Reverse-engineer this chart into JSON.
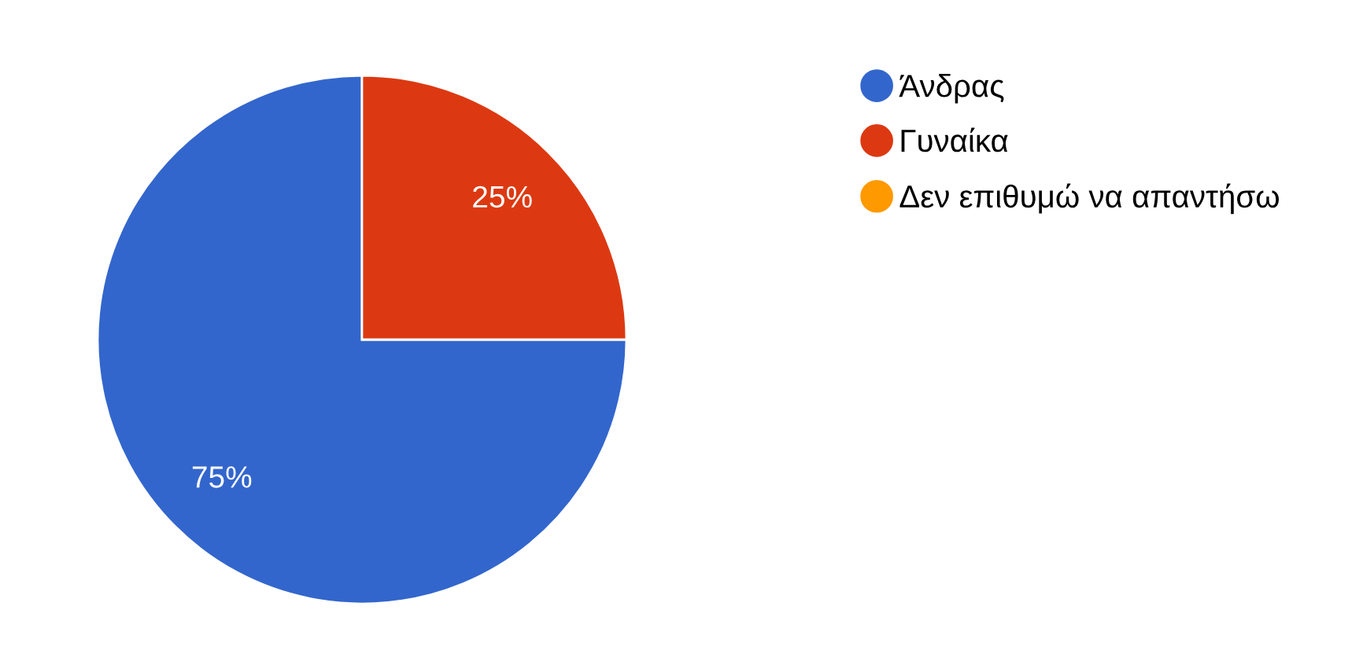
{
  "chart_data": {
    "type": "pie",
    "categories": [
      "Άνδρας",
      "Γυναίκα",
      "Δεν επιθυμώ να απαντήσω"
    ],
    "values": [
      75,
      25,
      0
    ],
    "colors": [
      "#3366cc",
      "#dc3912",
      "#ff9900"
    ],
    "value_labels": [
      "75%",
      "25%",
      null
    ],
    "legend": "right"
  }
}
